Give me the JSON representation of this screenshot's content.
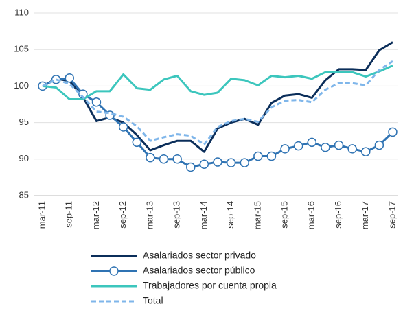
{
  "chart_data": {
    "type": "line",
    "categories": [
      "mar-11",
      null,
      "sep-11",
      null,
      "mar-12",
      null,
      "sep-12",
      null,
      "mar-13",
      null,
      "sep-13",
      null,
      "mar-14",
      null,
      "sep-14",
      null,
      "mar-15",
      null,
      "sep-15",
      null,
      "mar-16",
      null,
      "sep-16",
      null,
      "mar-17",
      null,
      "sep-17"
    ],
    "ylim": [
      85,
      110
    ],
    "yticks": [
      85,
      90,
      95,
      100,
      105,
      110
    ],
    "grid": true,
    "series": [
      {
        "name": "Asalariados sector privado",
        "color": "#0b2e5a",
        "marker": false,
        "dashed": false,
        "values": [
          100,
          101,
          100.7,
          98.5,
          95.2,
          95.7,
          95.0,
          93.3,
          91.2,
          91.9,
          92.5,
          92.5,
          91.0,
          94.2,
          95.0,
          95.5,
          94.7,
          97.7,
          98.7,
          98.9,
          98.4,
          100.8,
          102.3,
          102.3,
          102.2,
          104.9,
          106.0
        ]
      },
      {
        "name": "Asalariados sector público",
        "color": "#2f73b3",
        "marker": true,
        "dashed": false,
        "values": [
          100,
          100.9,
          101.1,
          98.9,
          97.8,
          96.0,
          94.4,
          92.3,
          90.2,
          90.0,
          90.0,
          88.9,
          89.3,
          89.6,
          89.5,
          89.5,
          90.4,
          90.4,
          91.4,
          91.8,
          92.3,
          91.6,
          91.9,
          91.4,
          91.0,
          91.9,
          93.7
        ]
      },
      {
        "name": "Trabajadores por cuenta propia",
        "color": "#3cc6bd",
        "marker": false,
        "dashed": false,
        "values": [
          100,
          99.8,
          98.2,
          98.2,
          99.3,
          99.3,
          101.6,
          99.7,
          99.5,
          100.9,
          101.4,
          99.3,
          98.8,
          99.1,
          101.0,
          100.8,
          100.1,
          101.4,
          101.2,
          101.4,
          101.0,
          101.9,
          101.9,
          101.9,
          101.3,
          102.0,
          102.8
        ]
      },
      {
        "name": "Total",
        "color": "#7fb6ea",
        "marker": false,
        "dashed": true,
        "values": [
          100,
          100.9,
          100.3,
          98.5,
          96.5,
          96.3,
          95.8,
          94.5,
          92.5,
          93.0,
          93.4,
          93.2,
          92.0,
          94.4,
          95.2,
          95.5,
          95.1,
          97.1,
          98.0,
          98.1,
          97.8,
          99.5,
          100.4,
          100.4,
          100.1,
          102.2,
          103.4
        ]
      }
    ]
  }
}
